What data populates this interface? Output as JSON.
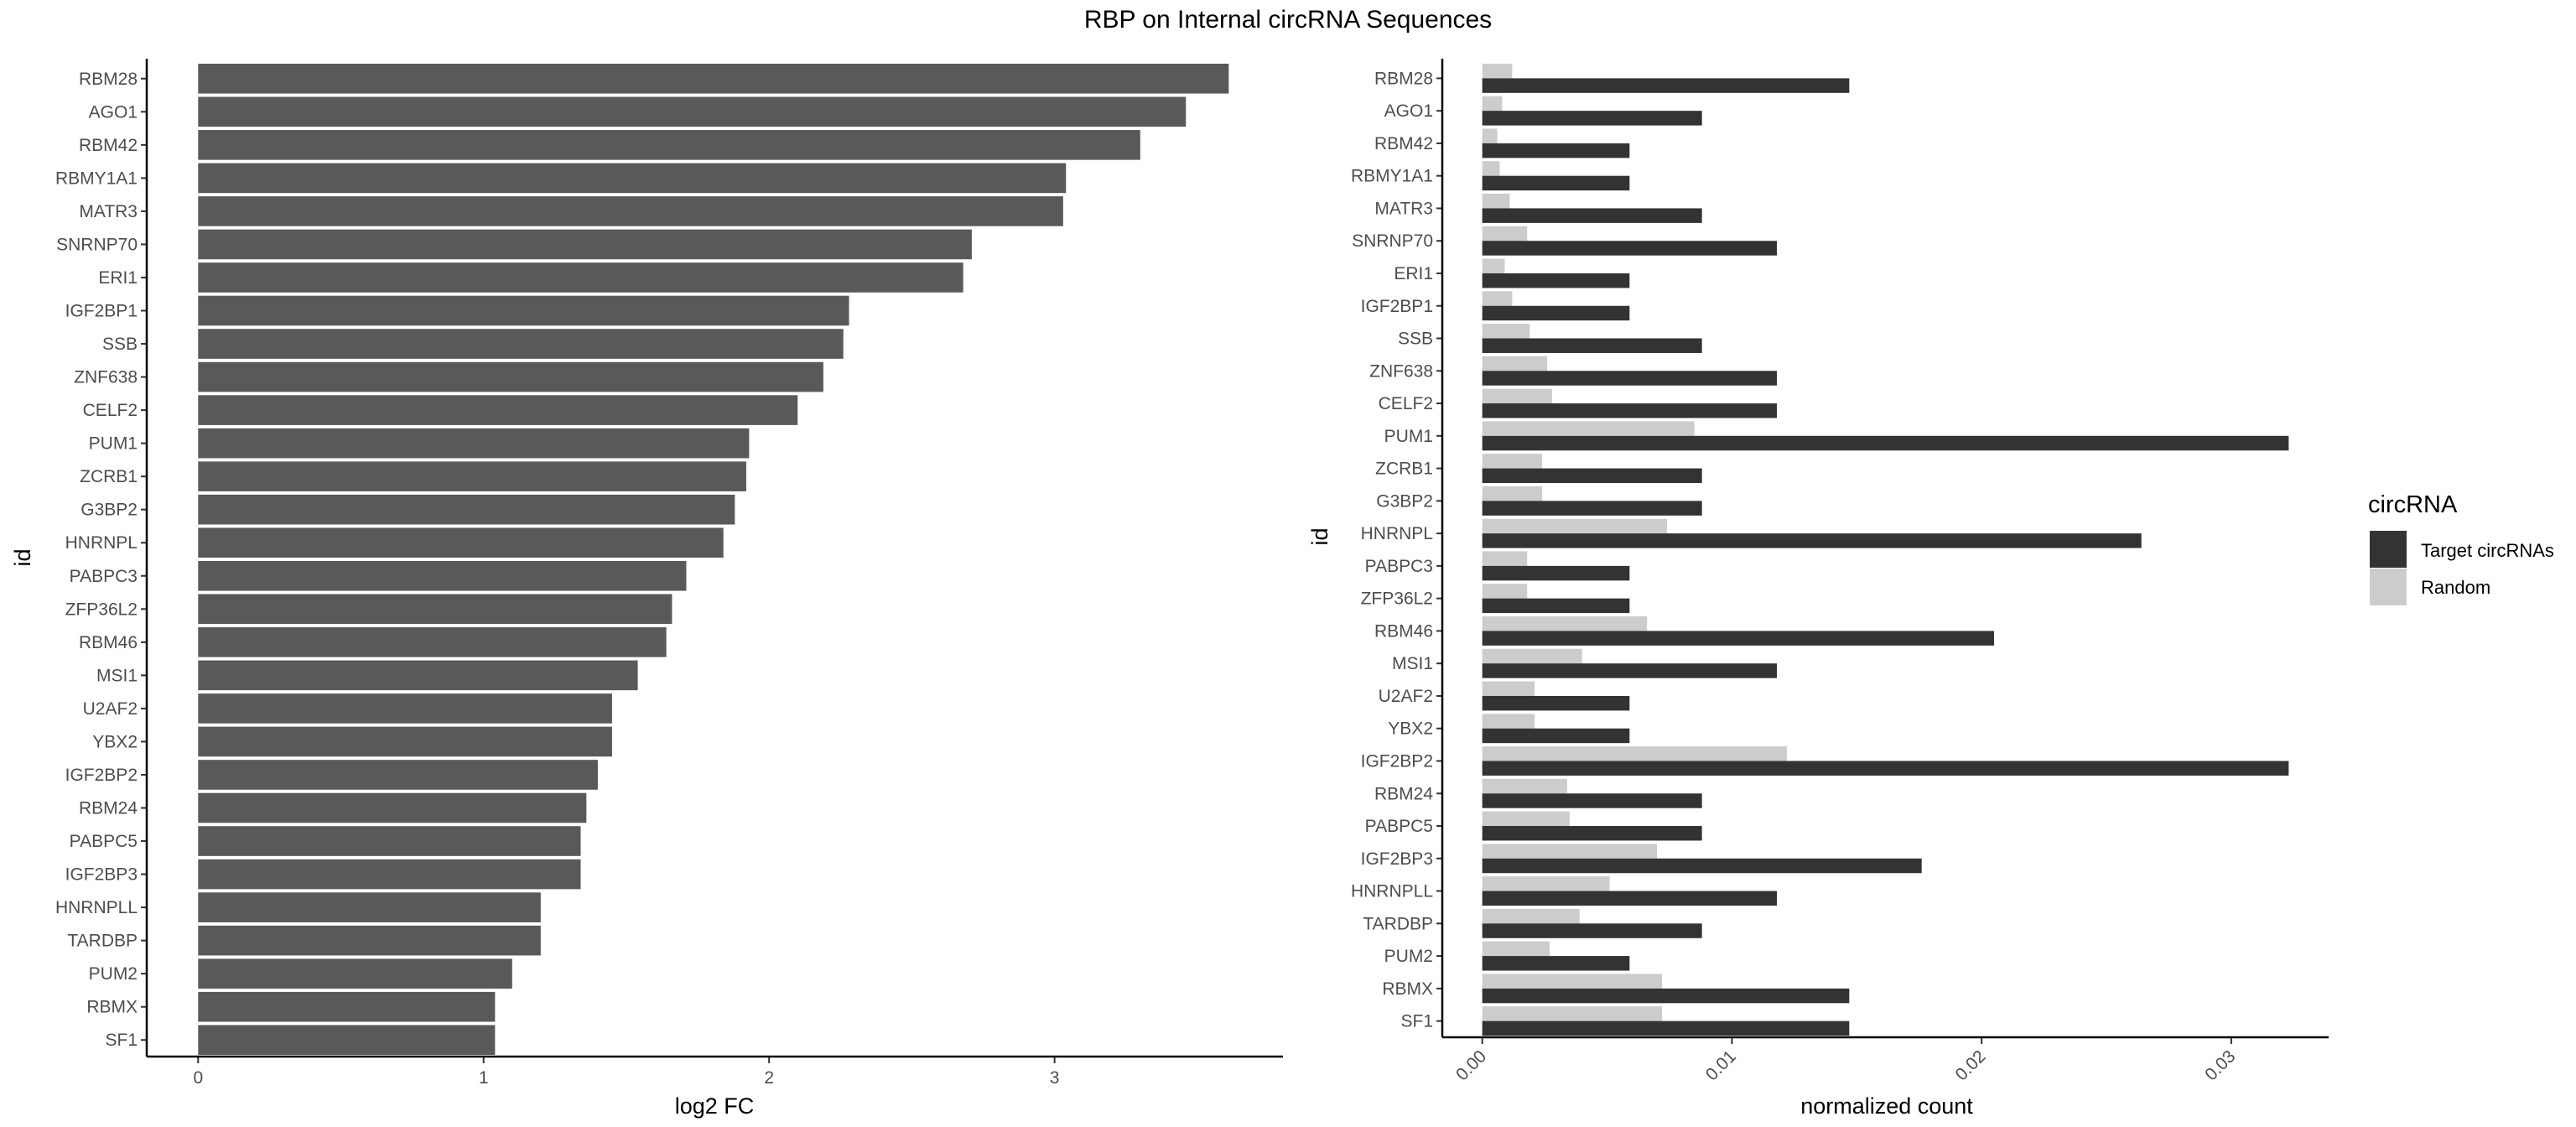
{
  "title": "RBP on Internal circRNA Sequences",
  "colors": {
    "bar_left": "#595959",
    "target": "#333333",
    "random": "#cccccc",
    "axis": "#000000"
  },
  "chart_data": [
    {
      "type": "bar",
      "orientation": "horizontal",
      "xlabel": "log2 FC",
      "ylabel": "id",
      "xlim": [
        -0.18,
        3.8
      ],
      "xticks": [
        "0",
        "1",
        "2",
        "3"
      ],
      "categories": [
        "RBM28",
        "AGO1",
        "RBM42",
        "RBMY1A1",
        "MATR3",
        "SNRNP70",
        "ERI1",
        "IGF2BP1",
        "SSB",
        "ZNF638",
        "CELF2",
        "PUM1",
        "ZCRB1",
        "G3BP2",
        "HNRNPL",
        "PABPC3",
        "ZFP36L2",
        "RBM46",
        "MSI1",
        "U2AF2",
        "YBX2",
        "IGF2BP2",
        "RBM24",
        "PABPC5",
        "IGF2BP3",
        "HNRNPLL",
        "TARDBP",
        "PUM2",
        "RBMX",
        "SF1"
      ],
      "values": [
        3.61,
        3.46,
        3.3,
        3.04,
        3.03,
        2.71,
        2.68,
        2.28,
        2.26,
        2.19,
        2.1,
        1.93,
        1.92,
        1.88,
        1.84,
        1.71,
        1.66,
        1.64,
        1.54,
        1.45,
        1.45,
        1.4,
        1.36,
        1.34,
        1.34,
        1.2,
        1.2,
        1.1,
        1.04,
        1.04
      ]
    },
    {
      "type": "bar",
      "orientation": "horizontal",
      "grouped": true,
      "xlabel": "normalized count",
      "ylabel": "id",
      "xlim": [
        -0.0016,
        0.0339
      ],
      "xticks": [
        "0.00",
        "0.01",
        "0.02",
        "0.03"
      ],
      "legend": {
        "title": "circRNA",
        "position": "right"
      },
      "categories": [
        "RBM28",
        "AGO1",
        "RBM42",
        "RBMY1A1",
        "MATR3",
        "SNRNP70",
        "ERI1",
        "IGF2BP1",
        "SSB",
        "ZNF638",
        "CELF2",
        "PUM1",
        "ZCRB1",
        "G3BP2",
        "HNRNPL",
        "PABPC3",
        "ZFP36L2",
        "RBM46",
        "MSI1",
        "U2AF2",
        "YBX2",
        "IGF2BP2",
        "RBM24",
        "PABPC5",
        "IGF2BP3",
        "HNRNPLL",
        "TARDBP",
        "PUM2",
        "RBMX",
        "SF1"
      ],
      "series": [
        {
          "name": "Target circRNAs",
          "values": [
            0.0147,
            0.0088,
            0.0059,
            0.0059,
            0.0088,
            0.0118,
            0.0059,
            0.0059,
            0.0088,
            0.0118,
            0.0118,
            0.0323,
            0.0088,
            0.0088,
            0.0264,
            0.0059,
            0.0059,
            0.0205,
            0.0118,
            0.0059,
            0.0059,
            0.0323,
            0.0088,
            0.0088,
            0.0176,
            0.0118,
            0.0088,
            0.0059,
            0.0147,
            0.0147
          ]
        },
        {
          "name": "Random",
          "values": [
            0.0012,
            0.0008,
            0.0006,
            0.0007,
            0.0011,
            0.0018,
            0.0009,
            0.0012,
            0.0019,
            0.0026,
            0.0028,
            0.0085,
            0.0024,
            0.0024,
            0.0074,
            0.0018,
            0.0018,
            0.0066,
            0.004,
            0.0021,
            0.0021,
            0.0122,
            0.0034,
            0.0035,
            0.007,
            0.0051,
            0.0039,
            0.0027,
            0.0072,
            0.0072
          ]
        }
      ]
    }
  ]
}
